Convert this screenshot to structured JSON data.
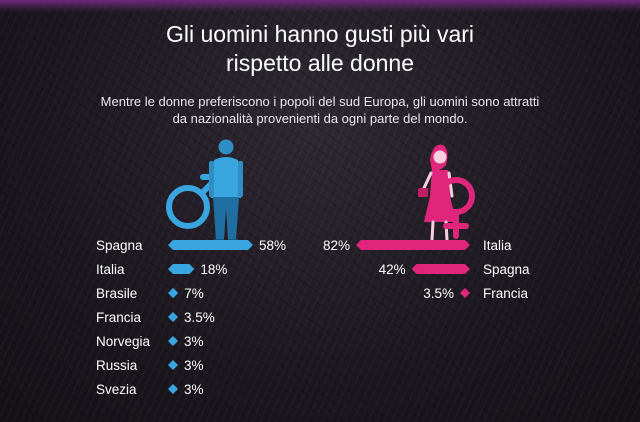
{
  "title_line1": "Gli uomini hanno gusti più vari",
  "title_line2": "rispetto alle donne",
  "subtitle_line1": "Mentre le donne preferiscono i popoli del sud Europa, gli uomini sono attratti",
  "subtitle_line2": "da nazionalità provenienti da ogni parte del mondo.",
  "colors": {
    "men": "#3aa6e0",
    "women": "#e0267c",
    "background": "#1c171f"
  },
  "icons": {
    "men": [
      "male-figure-icon",
      "male-symbol-icon"
    ],
    "women": [
      "female-figure-icon",
      "female-symbol-icon"
    ]
  },
  "chart_data": [
    {
      "type": "bar",
      "orientation": "horizontal",
      "series": [
        {
          "categories": [
            "Spagna",
            "Italia",
            "Brasile",
            "Francia",
            "Norvegia",
            "Russia",
            "Svezia"
          ],
          "values": [
            58,
            18,
            7,
            3.5,
            3,
            3,
            3
          ],
          "value_labels": [
            "58%",
            "18%",
            "7%",
            "3.5%",
            "3%",
            "3%",
            "3%"
          ]
        }
      ]
    },
    {
      "type": "bar",
      "orientation": "horizontal",
      "series": [
        {
          "categories": [
            "Italia",
            "Spagna",
            "Francia"
          ],
          "values": [
            82,
            42,
            3.5
          ],
          "value_labels": [
            "82%",
            "42%",
            "3.5%"
          ]
        }
      ]
    }
  ]
}
